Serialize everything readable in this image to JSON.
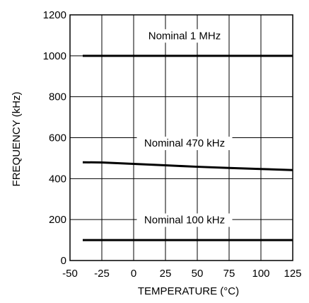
{
  "chart_data": {
    "type": "line",
    "title": "",
    "xlabel": "TEMPERATURE (°C)",
    "ylabel": "FREQUENCY (kHz)",
    "xlim": [
      -50,
      125
    ],
    "ylim": [
      0,
      1200
    ],
    "xticks": [
      "-50",
      "-25",
      "0",
      "25",
      "50",
      "75",
      "100",
      "125"
    ],
    "yticks": [
      "0",
      "200",
      "400",
      "600",
      "800",
      "1000",
      "1200"
    ],
    "grid": true,
    "legend": "none",
    "series": [
      {
        "values": [
          [
            -40,
            1000
          ],
          [
            125,
            1000
          ]
        ]
      },
      {
        "values": [
          [
            -40,
            480
          ],
          [
            -25,
            479
          ],
          [
            0,
            472
          ],
          [
            25,
            465
          ],
          [
            50,
            458
          ],
          [
            75,
            452
          ],
          [
            100,
            447
          ],
          [
            125,
            442
          ]
        ]
      },
      {
        "values": [
          [
            -40,
            100
          ],
          [
            125,
            100
          ]
        ]
      }
    ],
    "annotations": [
      {
        "text": "Nominal 1 MHz",
        "x": 40,
        "y": 1085
      },
      {
        "text": "Nominal 470 kHz",
        "x": 40,
        "y": 560
      },
      {
        "text": "Nominal 100 kHz",
        "x": 40,
        "y": 185
      }
    ]
  }
}
